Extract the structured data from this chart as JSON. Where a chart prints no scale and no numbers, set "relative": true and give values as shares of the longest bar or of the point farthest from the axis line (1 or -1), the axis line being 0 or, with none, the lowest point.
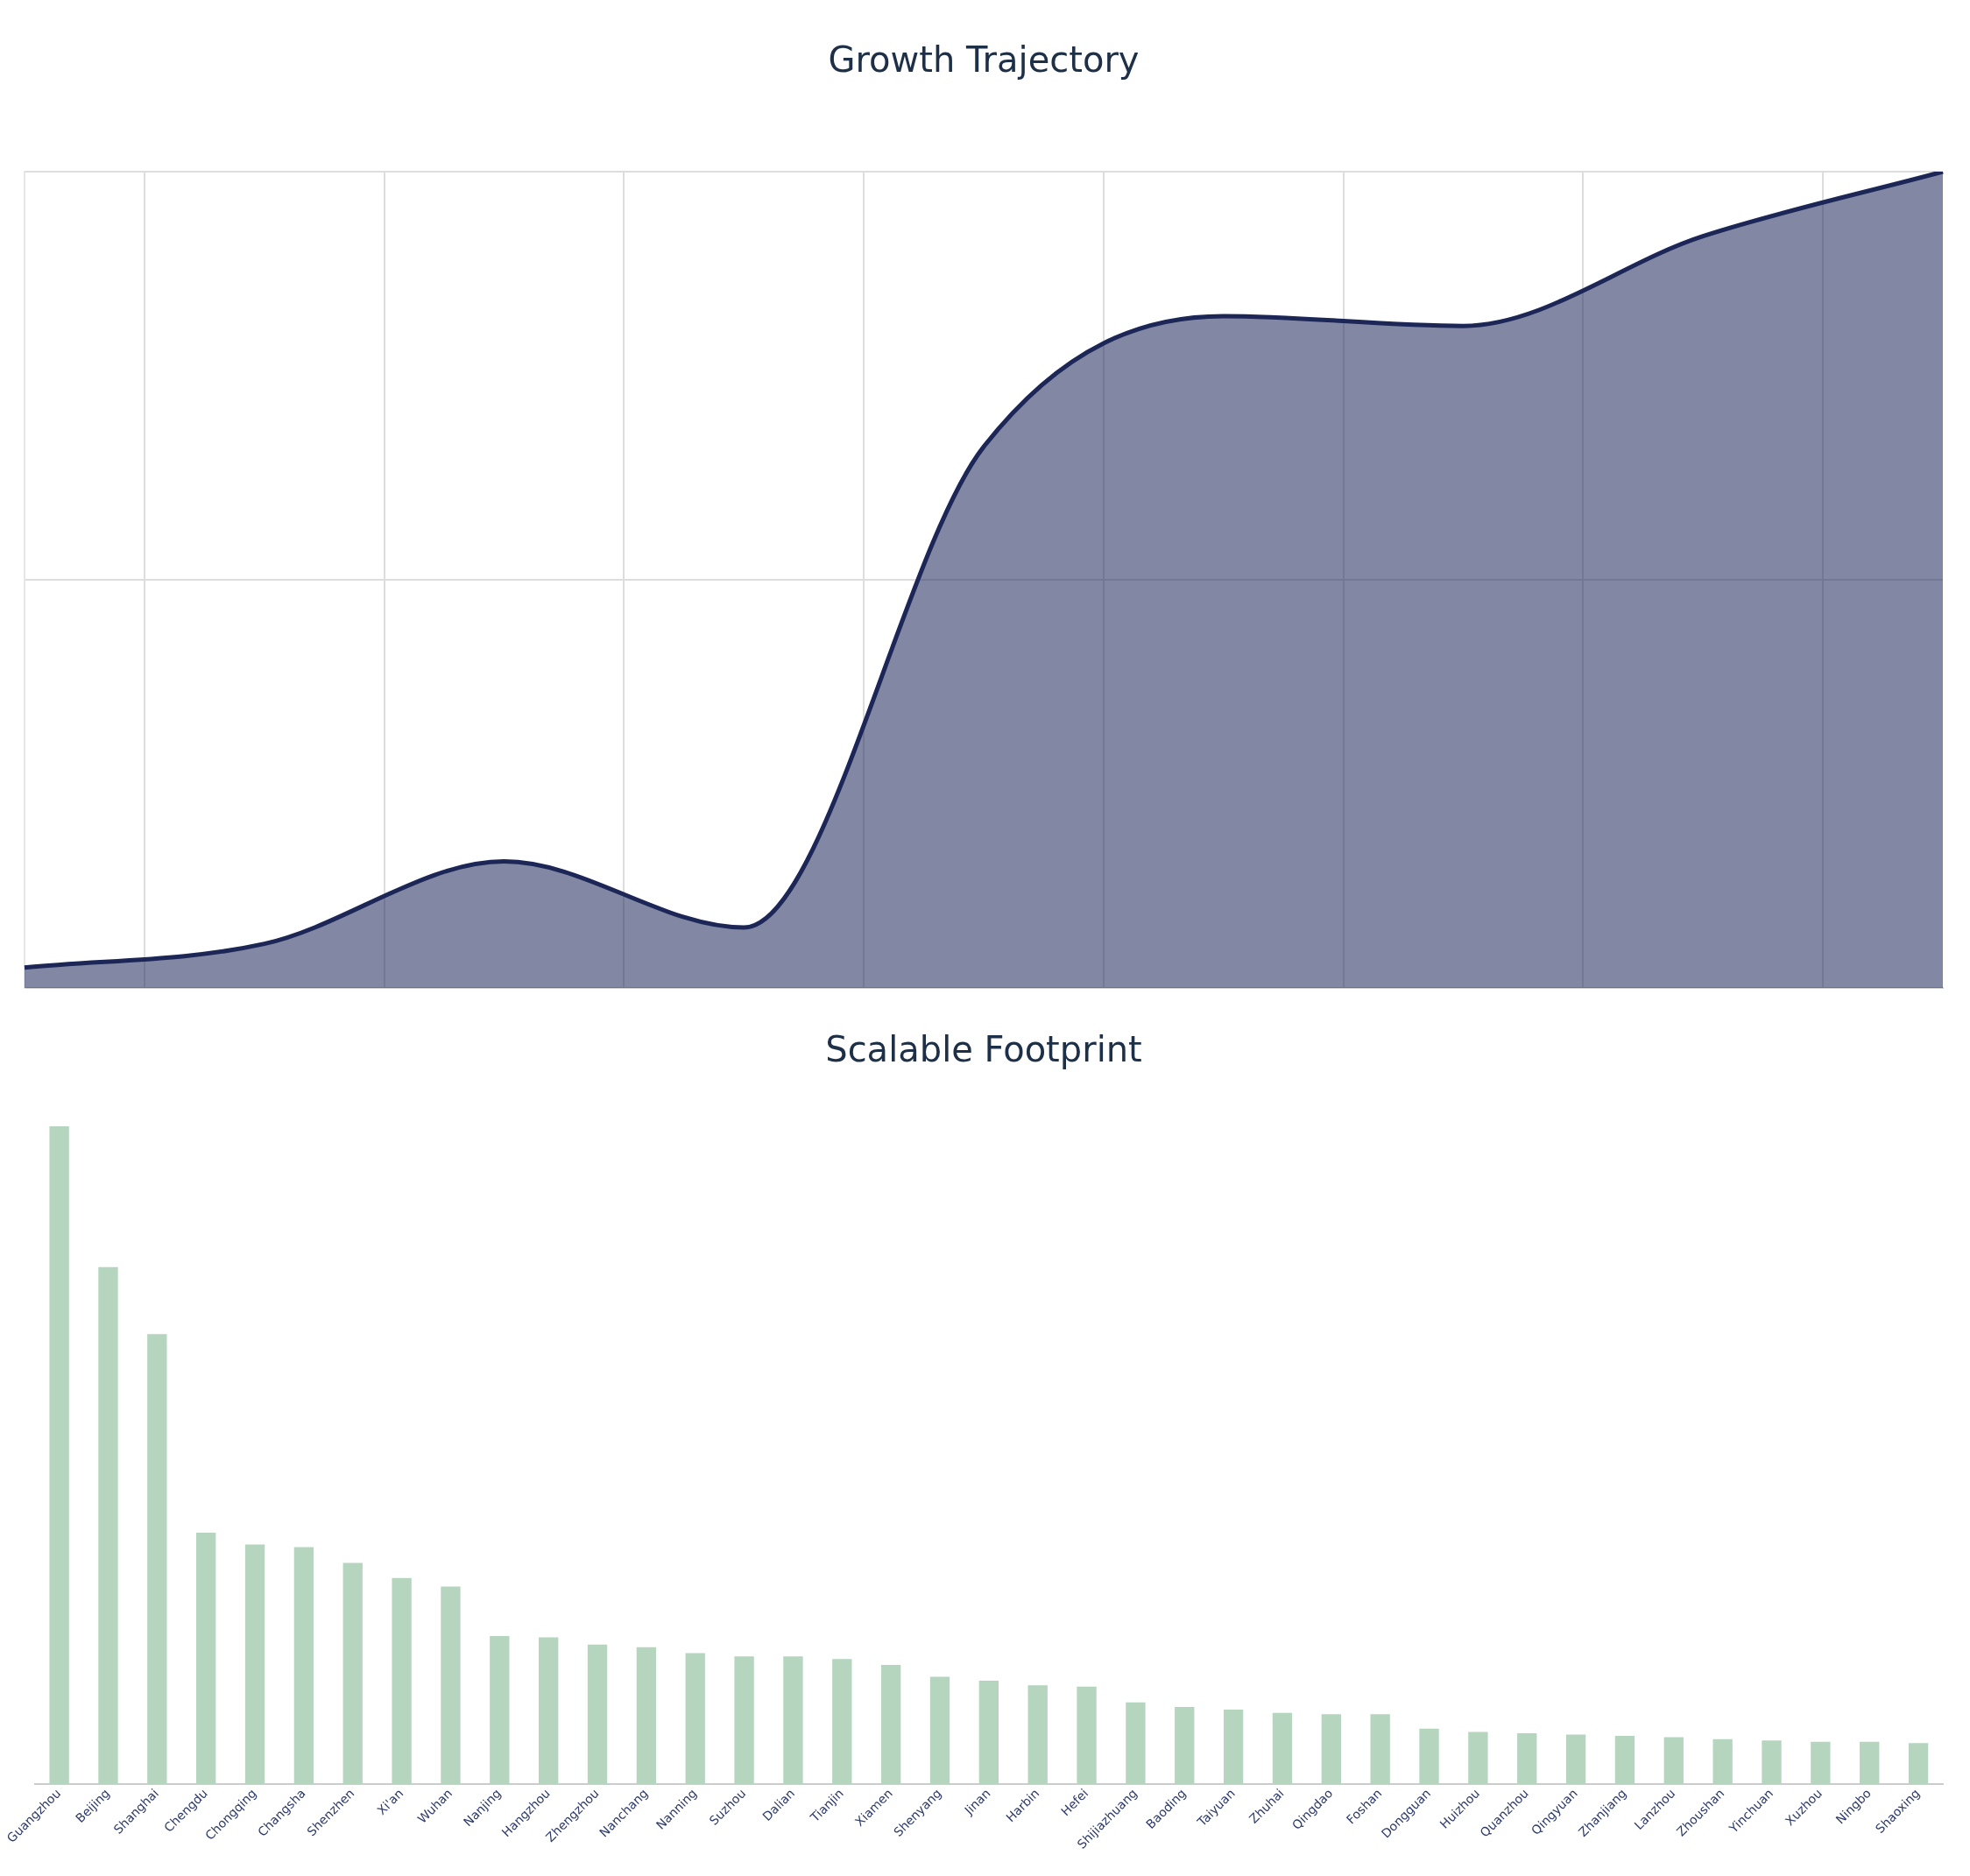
{
  "chart_data": [
    {
      "type": "area",
      "title": "Growth Trajectory",
      "relative": true,
      "grid": true,
      "line_style": "solid",
      "tick_labels": false,
      "categories": [
        null,
        null,
        null,
        null,
        null,
        null,
        null,
        null,
        null
      ],
      "series": [
        {
          "color": "#1c2657",
          "values": [
            0.025,
            0.054,
            0.155,
            0.074,
            0.663,
            0.823,
            0.811,
            0.921,
            1
          ]
        }
      ]
    },
    {
      "type": "bar",
      "title": "Scalable Footprint",
      "relative": true,
      "grid": false,
      "tick_labels": "x",
      "categories": [
        "Guangzhou",
        "Beijing",
        "Shanghai",
        "Chengdu",
        "Chongqing",
        "Changsha",
        "Shenzhen",
        "Xi'an",
        "Wuhan",
        "Nanjing",
        "Hangzhou",
        "Zhengzhou",
        "Nanchang",
        "Nanning",
        "Suzhou",
        "Dalian",
        "Tianjin",
        "Xiamen",
        "Shenyang",
        "Jinan",
        "Harbin",
        "Hefei",
        "Shijiazhuang",
        "Baoding",
        "Taiyuan",
        "Zhuhai",
        "Qingdao",
        "Foshan",
        "Dongguan",
        "Huizhou",
        "Quanzhou",
        "Qingyuan",
        "Zhanjiang",
        "Lanzhou",
        "Zhoushan",
        "Yinchuan",
        "Xuzhou",
        "Ningbo",
        "Shaoxing"
      ],
      "series": [
        {
          "color": "#b5d5bf",
          "values": [
            1,
            0.786,
            0.684,
            0.382,
            0.364,
            0.36,
            0.336,
            0.313,
            0.3,
            0.225,
            0.223,
            0.212,
            0.208,
            0.199,
            0.194,
            0.194,
            0.19,
            0.181,
            0.163,
            0.157,
            0.15,
            0.148,
            0.124,
            0.117,
            0.113,
            0.108,
            0.106,
            0.106,
            0.084,
            0.079,
            0.077,
            0.075,
            0.073,
            0.071,
            0.068,
            0.066,
            0.064,
            0.064,
            0.062
          ]
        }
      ]
    }
  ]
}
